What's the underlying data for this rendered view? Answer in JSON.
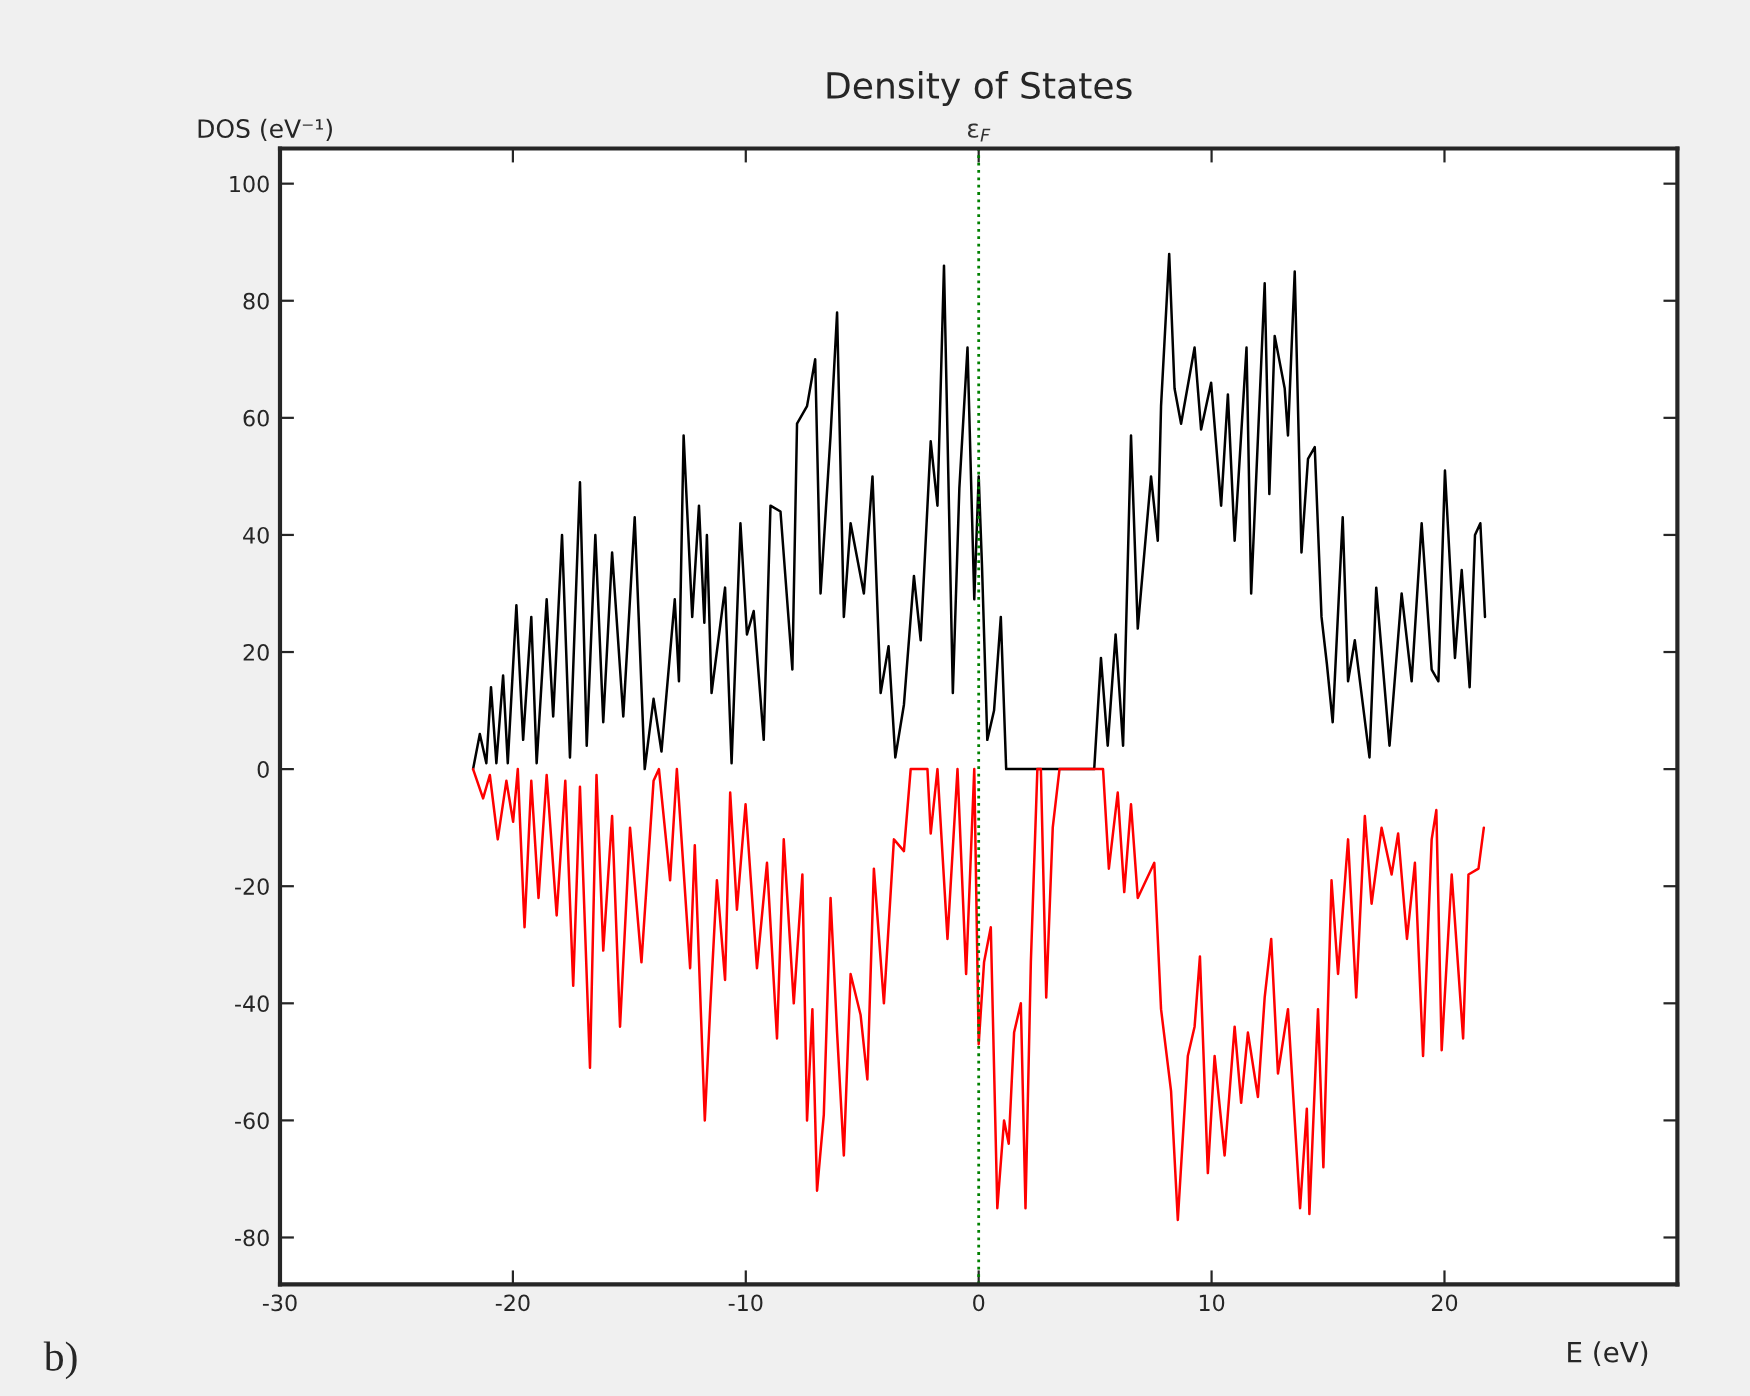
{
  "chart_data": {
    "type": "line",
    "title": "Density of States",
    "xlabel": "E (eV)",
    "ylabel": "DOS (eV⁻¹)",
    "xlim": [
      -30,
      30
    ],
    "xticks": [
      -30,
      -20,
      -10,
      0,
      10,
      20
    ],
    "ylim": [
      -88,
      106
    ],
    "yticks": [
      -80,
      -60,
      -40,
      -20,
      0,
      20,
      40,
      60,
      80,
      100
    ],
    "grid": false,
    "legend": false,
    "line_style": "solid",
    "ref_lines": [
      {
        "axis": "x",
        "value": 0,
        "label": "ε$_{F}$",
        "color": "#008000",
        "line_style": "dotted"
      }
    ],
    "annotations": [
      "b)"
    ],
    "series": [
      {
        "color": "#000000",
        "x": [
          -21.71,
          -21.42,
          -21.14,
          -20.94,
          -20.71,
          -20.42,
          -20.22,
          -19.85,
          -19.56,
          -19.21,
          -18.98,
          -18.55,
          -18.27,
          -17.89,
          -17.55,
          -17.12,
          -16.83,
          -16.46,
          -16.12,
          -15.74,
          -15.26,
          -14.77,
          -14.34,
          -13.96,
          -13.62,
          -13.05,
          -12.87,
          -12.67,
          -12.3,
          -12.01,
          -11.78,
          -11.67,
          -11.47,
          -10.89,
          -10.61,
          -10.23,
          -9.95,
          -9.66,
          -9.23,
          -8.94,
          -8.51,
          -8.0,
          -7.8,
          -7.37,
          -7.02,
          -6.79,
          -6.36,
          -6.08,
          -5.79,
          -5.5,
          -4.93,
          -4.56,
          -4.21,
          -3.87,
          -3.58,
          -3.21,
          -2.78,
          -2.49,
          -2.06,
          -1.77,
          -1.49,
          -1.11,
          -0.83,
          -0.48,
          -0.19,
          0.0,
          0.14,
          0.37,
          0.66,
          0.95,
          1.18,
          4.96,
          5.25,
          5.54,
          5.88,
          6.2,
          6.54,
          6.83,
          7.4,
          7.69,
          7.83,
          8.18,
          8.41,
          8.69,
          9.27,
          9.55,
          9.98,
          10.41,
          10.7,
          10.99,
          11.5,
          11.7,
          12.28,
          12.48,
          12.71,
          13.14,
          13.28,
          13.57,
          13.86,
          14.14,
          14.43,
          14.72,
          14.95,
          15.2,
          15.63,
          15.86,
          16.15,
          16.78,
          17.07,
          17.64,
          18.16,
          18.59,
          19.02,
          19.45,
          19.74,
          20.02,
          20.45,
          20.74,
          21.08,
          21.31,
          21.54,
          21.74
        ],
        "values": [
          0,
          6,
          1,
          14,
          1,
          16,
          1,
          28,
          5,
          26,
          1,
          29,
          9,
          40,
          2,
          49,
          4,
          40,
          8,
          37,
          9,
          43,
          0,
          12,
          3,
          29,
          15,
          57,
          26,
          45,
          25,
          40,
          13,
          31,
          1,
          42,
          23,
          27,
          5,
          45,
          44,
          17,
          59,
          62,
          70,
          30,
          57,
          78,
          26,
          42,
          30,
          50,
          13,
          21,
          2,
          11,
          33,
          22,
          56,
          45,
          86,
          13,
          48,
          72,
          29,
          50,
          35,
          5,
          10,
          26,
          0,
          0,
          19,
          4,
          23,
          4,
          57,
          24,
          50,
          39,
          62,
          88,
          65,
          59,
          72,
          58,
          66,
          45,
          64,
          39,
          72,
          30,
          83,
          47,
          74,
          65,
          57,
          85,
          37,
          53,
          55,
          26,
          18,
          8,
          43,
          15,
          22,
          2,
          31,
          4,
          30,
          15,
          42,
          17,
          15,
          51,
          19,
          34,
          14,
          40,
          42,
          26
        ]
      },
      {
        "color": "#ff0000",
        "x": [
          -21.71,
          -21.28,
          -20.99,
          -20.65,
          -20.28,
          -19.99,
          -19.79,
          -19.5,
          -19.21,
          -18.9,
          -18.55,
          -18.12,
          -17.75,
          -17.41,
          -17.12,
          -16.69,
          -16.41,
          -16.12,
          -15.74,
          -15.4,
          -14.97,
          -14.48,
          -13.96,
          -13.73,
          -13.25,
          -12.96,
          -12.39,
          -12.19,
          -11.76,
          -11.53,
          -11.24,
          -10.89,
          -10.67,
          -10.38,
          -10.01,
          -9.52,
          -9.09,
          -8.66,
          -8.37,
          -7.94,
          -7.57,
          -7.37,
          -7.14,
          -6.94,
          -6.65,
          -6.36,
          -6.08,
          -5.79,
          -5.5,
          -5.07,
          -4.78,
          -4.5,
          -4.07,
          -3.64,
          -3.21,
          -2.92,
          -2.2,
          -2.06,
          -1.77,
          -1.34,
          -0.91,
          -0.54,
          -0.19,
          0.0,
          0.23,
          0.52,
          0.8,
          1.09,
          1.29,
          1.52,
          1.81,
          2.01,
          2.24,
          2.52,
          2.67,
          2.9,
          3.18,
          3.47,
          5.34,
          5.59,
          5.97,
          6.25,
          6.54,
          6.83,
          7.54,
          7.83,
          8.26,
          8.55,
          8.98,
          9.27,
          9.5,
          9.84,
          10.13,
          10.56,
          10.99,
          11.27,
          11.56,
          11.99,
          12.28,
          12.56,
          12.85,
          13.28,
          13.57,
          13.8,
          14.09,
          14.2,
          14.57,
          14.8,
          15.15,
          15.43,
          15.86,
          16.21,
          16.58,
          16.87,
          17.3,
          17.73,
          18.01,
          18.39,
          18.73,
          19.08,
          19.45,
          19.65,
          19.88,
          20.31,
          20.8,
          21.03,
          21.46,
          21.69
        ],
        "values": [
          0,
          -5,
          -1,
          -12,
          -2,
          -9,
          0,
          -27,
          -2,
          -22,
          -1,
          -25,
          -2,
          -37,
          -3,
          -51,
          -1,
          -31,
          -8,
          -44,
          -10,
          -33,
          -2,
          0,
          -19,
          0,
          -34,
          -13,
          -60,
          -41,
          -19,
          -36,
          -4,
          -24,
          -6,
          -34,
          -16,
          -46,
          -12,
          -40,
          -18,
          -60,
          -41,
          -72,
          -59,
          -22,
          -45,
          -66,
          -35,
          -42,
          -53,
          -17,
          -40,
          -12,
          -14,
          0,
          0,
          -11,
          0,
          -29,
          0,
          -35,
          0,
          -47,
          -33,
          -27,
          -75,
          -60,
          -64,
          -45,
          -40,
          -75,
          -33,
          0,
          0,
          -39,
          -10,
          0,
          0,
          -17,
          -4,
          -21,
          -6,
          -22,
          -16,
          -41,
          -55,
          -77,
          -49,
          -44,
          -32,
          -69,
          -49,
          -66,
          -44,
          -57,
          -45,
          -56,
          -39,
          -29,
          -52,
          -41,
          -60,
          -75,
          -58,
          -76,
          -41,
          -68,
          -19,
          -35,
          -12,
          -39,
          -8,
          -23,
          -10,
          -18,
          -11,
          -29,
          -16,
          -49,
          -12,
          -7,
          -48,
          -18,
          -46,
          -18,
          -17,
          -10
        ]
      }
    ]
  }
}
